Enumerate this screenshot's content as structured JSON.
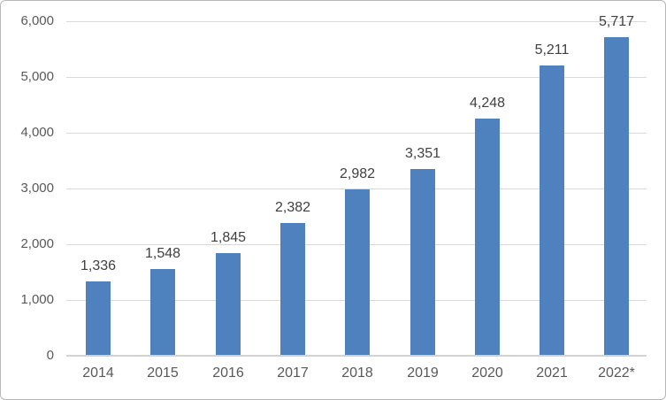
{
  "chart_data": {
    "type": "bar",
    "title": "",
    "xlabel": "",
    "ylabel": "",
    "categories": [
      "2014",
      "2015",
      "2016",
      "2017",
      "2018",
      "2019",
      "2020",
      "2021",
      "2022*"
    ],
    "values": [
      1336,
      1548,
      1845,
      2382,
      2982,
      3351,
      4248,
      5211,
      5717
    ],
    "value_labels": [
      "1,336",
      "1,548",
      "1,845",
      "2,382",
      "2,982",
      "3,351",
      "4,248",
      "5,211",
      "5,717"
    ],
    "ylim": [
      0,
      6000
    ],
    "yticks": [
      0,
      1000,
      2000,
      3000,
      4000,
      5000,
      6000
    ],
    "ytick_labels": [
      "0",
      "1,000",
      "2,000",
      "3,000",
      "4,000",
      "5,000",
      "6,000"
    ],
    "grid": true,
    "legend": false,
    "data_labels_shown": true,
    "colors": {
      "bar": "#4e81bd",
      "gridline": "#d9d9d9",
      "axis_line": "#d2d2d2",
      "ytick_text": "#595959",
      "xtick_text": "#595959",
      "value_label_text": "#404040",
      "frame_border": "#b7b7b7",
      "background": "#ffffff"
    }
  }
}
